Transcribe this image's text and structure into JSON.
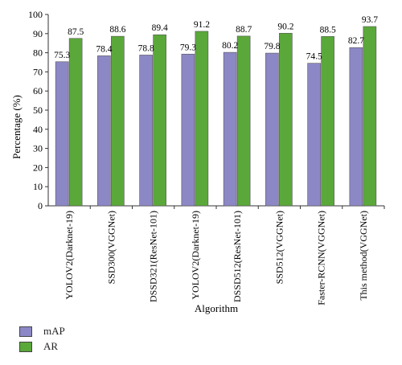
{
  "chart_data": {
    "type": "bar",
    "categories": [
      "YOLOV2(Darknet-19)",
      "SSD300(VGGNet)",
      "DSSD321(ResNet-101)",
      "YOLOV2(Darknet-19)",
      "DSSD512(ResNet-101)",
      "SSD512(VGGNet)",
      "Faster-RCNN(VGGNet)",
      "This method(VGGNet)"
    ],
    "series": [
      {
        "name": "mAP",
        "values": [
          75.3,
          78.4,
          78.8,
          79.3,
          80.2,
          79.8,
          74.5,
          82.7
        ],
        "color": "#8c88c6"
      },
      {
        "name": "AR",
        "values": [
          87.5,
          88.6,
          89.4,
          91.2,
          88.7,
          90.2,
          88.5,
          93.7
        ],
        "color": "#5aa83a"
      }
    ],
    "xlabel": "Algorithm",
    "ylabel": "Percentage (%)",
    "ylim": [
      0,
      100
    ],
    "yticks": [
      0,
      10,
      20,
      30,
      40,
      50,
      60,
      70,
      80,
      90,
      100
    ],
    "grid": false,
    "legend_position": "bottom-left"
  }
}
